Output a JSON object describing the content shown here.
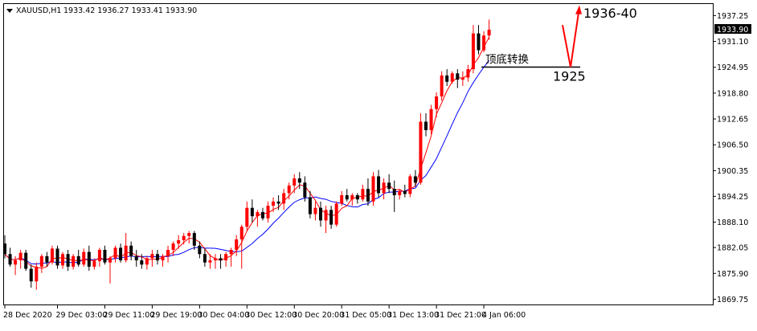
{
  "chart_data": {
    "type": "candlestick",
    "title": "XAUUSD,H1",
    "ohlc_header": "1933.42 1936.27 1933.41 1933.90",
    "current_price": "1933.90",
    "ylim": [
      1868.5,
      1940.0
    ],
    "yticks": [
      "1937.25",
      "1931.10",
      "1924.95",
      "1918.80",
      "1912.65",
      "1906.50",
      "1900.35",
      "1894.25",
      "1888.10",
      "1882.05",
      "1875.90",
      "1869.75"
    ],
    "xticks": [
      {
        "label": "28 Dec 2020",
        "index": 0
      },
      {
        "label": "29 Dec 03:00",
        "index": 10
      },
      {
        "label": "29 Dec 11:00",
        "index": 19
      },
      {
        "label": "29 Dec 19:00",
        "index": 28
      },
      {
        "label": "30 Dec 04:00",
        "index": 37
      },
      {
        "label": "30 Dec 12:00",
        "index": 46
      },
      {
        "label": "30 Dec 20:00",
        "index": 55
      },
      {
        "label": "31 Dec 05:00",
        "index": 64
      },
      {
        "label": "31 Dec 13:00",
        "index": 73
      },
      {
        "label": "31 Dec 21:00",
        "index": 82
      },
      {
        "label": "4 Jan 06:00",
        "index": 91
      }
    ],
    "candles": [
      [
        1883.0,
        1885.0,
        1879.5,
        1880.5
      ],
      [
        1880.5,
        1882.0,
        1877.5,
        1878.0
      ],
      [
        1878.0,
        1880.0,
        1875.5,
        1879.0
      ],
      [
        1879.0,
        1881.5,
        1877.0,
        1880.8
      ],
      [
        1880.8,
        1881.5,
        1876.5,
        1877.0
      ],
      [
        1877.0,
        1878.0,
        1872.5,
        1874.0
      ],
      [
        1874.0,
        1878.5,
        1872.0,
        1877.5
      ],
      [
        1877.5,
        1880.5,
        1876.0,
        1880.0
      ],
      [
        1880.0,
        1881.0,
        1877.5,
        1878.5
      ],
      [
        1878.5,
        1882.5,
        1878.0,
        1881.8
      ],
      [
        1881.8,
        1882.5,
        1877.0,
        1877.8
      ],
      [
        1877.8,
        1881.0,
        1877.0,
        1880.5
      ],
      [
        1880.5,
        1881.5,
        1876.5,
        1877.5
      ],
      [
        1877.5,
        1880.5,
        1876.8,
        1880.0
      ],
      [
        1880.0,
        1881.5,
        1877.5,
        1878.0
      ],
      [
        1878.0,
        1881.8,
        1877.5,
        1881.0
      ],
      [
        1881.0,
        1882.5,
        1876.5,
        1877.5
      ],
      [
        1877.5,
        1879.5,
        1876.8,
        1878.8
      ],
      [
        1878.8,
        1882.0,
        1877.5,
        1881.5
      ],
      [
        1881.5,
        1882.5,
        1878.0,
        1878.5
      ],
      [
        1878.5,
        1880.0,
        1873.5,
        1879.5
      ],
      [
        1879.5,
        1882.5,
        1878.5,
        1882.0
      ],
      [
        1882.0,
        1883.0,
        1878.5,
        1879.0
      ],
      [
        1879.0,
        1885.5,
        1878.5,
        1882.5
      ],
      [
        1882.5,
        1883.5,
        1879.0,
        1880.0
      ],
      [
        1880.0,
        1881.5,
        1877.5,
        1879.0
      ],
      [
        1879.0,
        1880.5,
        1877.0,
        1878.0
      ],
      [
        1878.0,
        1880.0,
        1876.8,
        1879.5
      ],
      [
        1879.5,
        1881.5,
        1877.5,
        1880.5
      ],
      [
        1880.5,
        1881.5,
        1878.0,
        1879.0
      ],
      [
        1879.0,
        1880.5,
        1877.5,
        1880.0
      ],
      [
        1880.0,
        1882.5,
        1878.5,
        1881.5
      ],
      [
        1881.5,
        1883.5,
        1880.0,
        1883.0
      ],
      [
        1883.0,
        1885.0,
        1881.8,
        1883.8
      ],
      [
        1883.8,
        1885.5,
        1882.8,
        1884.8
      ],
      [
        1884.8,
        1886.0,
        1883.0,
        1885.5
      ],
      [
        1885.5,
        1886.0,
        1881.5,
        1882.5
      ],
      [
        1882.5,
        1883.5,
        1879.5,
        1880.5
      ],
      [
        1880.5,
        1882.0,
        1877.5,
        1878.5
      ],
      [
        1878.5,
        1880.5,
        1877.0,
        1879.0
      ],
      [
        1879.0,
        1880.5,
        1877.0,
        1879.5
      ],
      [
        1879.5,
        1880.5,
        1877.0,
        1879.0
      ],
      [
        1879.0,
        1881.0,
        1877.5,
        1880.5
      ],
      [
        1880.5,
        1882.0,
        1877.5,
        1881.5
      ],
      [
        1881.5,
        1885.0,
        1880.0,
        1884.0
      ],
      [
        1884.0,
        1887.5,
        1877.0,
        1887.0
      ],
      [
        1887.0,
        1893.0,
        1886.0,
        1891.5
      ],
      [
        1891.5,
        1893.5,
        1888.0,
        1889.5
      ],
      [
        1889.5,
        1891.0,
        1887.0,
        1890.5
      ],
      [
        1890.5,
        1891.5,
        1888.5,
        1889.0
      ],
      [
        1889.0,
        1893.0,
        1888.0,
        1892.0
      ],
      [
        1892.0,
        1894.0,
        1890.5,
        1893.0
      ],
      [
        1893.0,
        1894.5,
        1891.0,
        1892.5
      ],
      [
        1892.5,
        1896.0,
        1891.0,
        1895.0
      ],
      [
        1895.0,
        1897.5,
        1893.5,
        1896.8
      ],
      [
        1896.8,
        1899.5,
        1895.0,
        1898.5
      ],
      [
        1898.5,
        1900.0,
        1896.0,
        1897.5
      ],
      [
        1897.5,
        1899.0,
        1893.0,
        1894.0
      ],
      [
        1894.0,
        1895.5,
        1889.0,
        1890.0
      ],
      [
        1890.0,
        1893.0,
        1888.5,
        1891.5
      ],
      [
        1891.5,
        1893.0,
        1887.0,
        1888.5
      ],
      [
        1888.5,
        1892.0,
        1885.5,
        1891.0
      ],
      [
        1891.0,
        1892.0,
        1886.5,
        1887.5
      ],
      [
        1887.5,
        1893.0,
        1887.0,
        1892.5
      ],
      [
        1892.5,
        1895.5,
        1892.0,
        1894.5
      ],
      [
        1894.5,
        1896.0,
        1893.0,
        1893.5
      ],
      [
        1893.5,
        1895.0,
        1892.0,
        1894.5
      ],
      [
        1894.5,
        1895.0,
        1892.5,
        1893.5
      ],
      [
        1893.5,
        1897.0,
        1893.0,
        1896.0
      ],
      [
        1896.0,
        1898.5,
        1892.0,
        1893.0
      ],
      [
        1893.0,
        1900.0,
        1892.0,
        1899.0
      ],
      [
        1899.0,
        1900.5,
        1894.0,
        1895.0
      ],
      [
        1895.0,
        1898.5,
        1893.5,
        1897.5
      ],
      [
        1897.5,
        1899.5,
        1895.0,
        1896.0
      ],
      [
        1896.0,
        1898.0,
        1890.5,
        1894.5
      ],
      [
        1894.5,
        1896.0,
        1893.5,
        1895.5
      ],
      [
        1895.5,
        1897.0,
        1894.0,
        1894.8
      ],
      [
        1894.8,
        1899.5,
        1894.0,
        1899.0
      ],
      [
        1899.0,
        1900.5,
        1896.5,
        1897.5
      ],
      [
        1897.5,
        1914.0,
        1897.0,
        1912.0
      ],
      [
        1912.0,
        1914.0,
        1908.5,
        1910.0
      ],
      [
        1910.0,
        1916.0,
        1909.0,
        1915.0
      ],
      [
        1915.0,
        1919.0,
        1913.0,
        1918.0
      ],
      [
        1918.0,
        1924.0,
        1917.0,
        1923.0
      ],
      [
        1923.0,
        1924.5,
        1920.5,
        1921.5
      ],
      [
        1921.5,
        1924.0,
        1921.0,
        1923.5
      ],
      [
        1923.5,
        1924.5,
        1920.0,
        1922.0
      ],
      [
        1922.0,
        1924.0,
        1920.5,
        1922.5
      ],
      [
        1922.5,
        1925.5,
        1921.5,
        1924.5
      ],
      [
        1924.5,
        1935.0,
        1923.5,
        1933.0
      ],
      [
        1933.0,
        1935.0,
        1928.0,
        1929.0
      ],
      [
        1929.0,
        1933.5,
        1928.5,
        1932.5
      ],
      [
        1932.5,
        1936.3,
        1931.5,
        1933.9
      ]
    ]
  },
  "annotations": {
    "target_label": "1936-40",
    "level_label": "1925",
    "level_value": 1925,
    "cn_label": "顶底转换",
    "arrow_start": [
      1924.5,
      1935.0
    ],
    "arrow_dip": 1925,
    "arrow_peak": 1939.5
  },
  "colors": {
    "bull": "#ff0000",
    "bear": "#000000",
    "ma_fast": "#ff0000",
    "ma_slow": "#0000ff",
    "annotation_arrow": "#ff0000"
  }
}
